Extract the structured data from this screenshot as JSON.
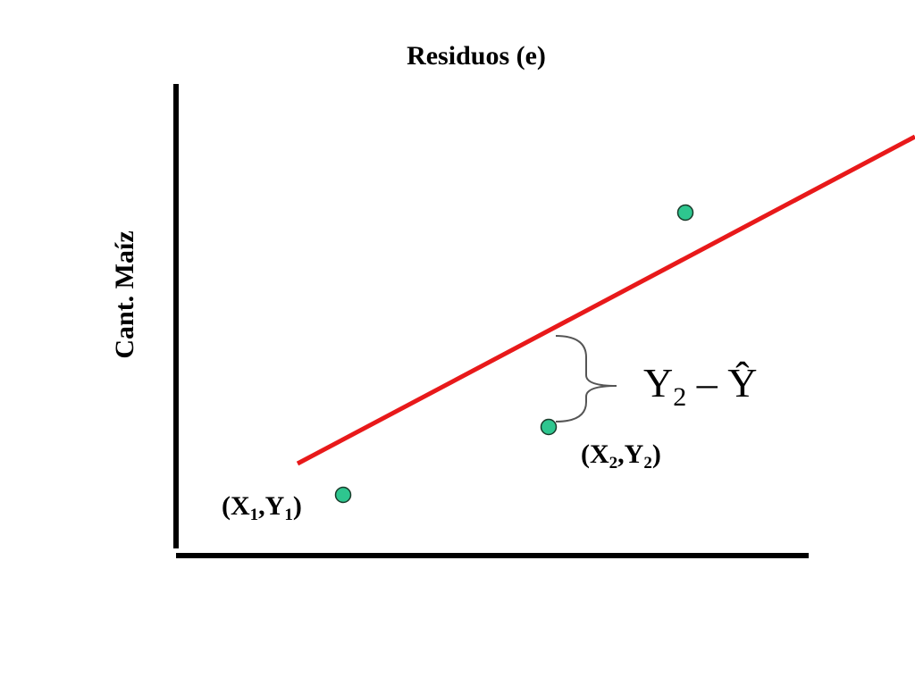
{
  "title": "Residuos (e)",
  "y_axis_label": "Cant. Maíz",
  "point_labels": [
    [
      "(X",
      "1",
      ",Y",
      "1",
      ")"
    ],
    [
      "(X",
      "2",
      ",Y",
      "2",
      ")"
    ]
  ],
  "residual_label": [
    "Y",
    "2",
    " – Ŷ"
  ]
}
